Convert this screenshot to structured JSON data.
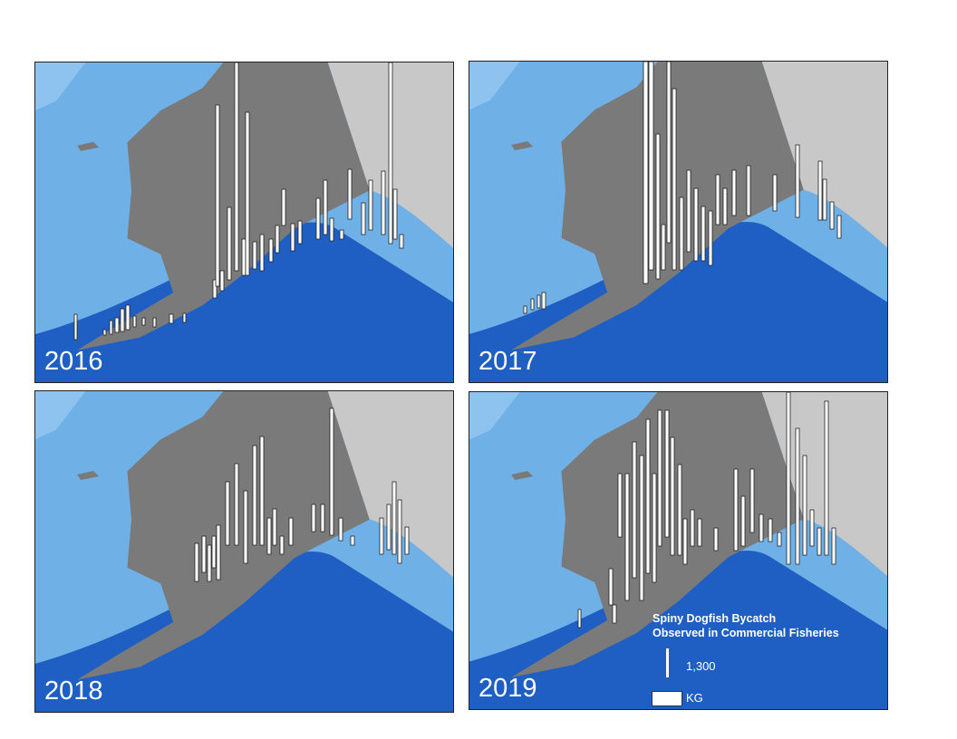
{
  "panels": [
    {
      "year": "2016"
    },
    {
      "year": "2017"
    },
    {
      "year": "2018"
    },
    {
      "year": "2019"
    }
  ],
  "legend": {
    "title_line1": "Spiny Dogfish Bycatch",
    "title_line2": "Observed in Commercial Fisheries",
    "scale_value": "1,300",
    "unit": "KG"
  },
  "colors": {
    "land_alaska": "#7a7a7a",
    "land_canada": "#c8c8c8",
    "shelf": "#6fb0e6",
    "deep_ocean": "#1f5fc4",
    "bar_fill": "#ffffff",
    "bar_stroke": "#222222"
  }
}
